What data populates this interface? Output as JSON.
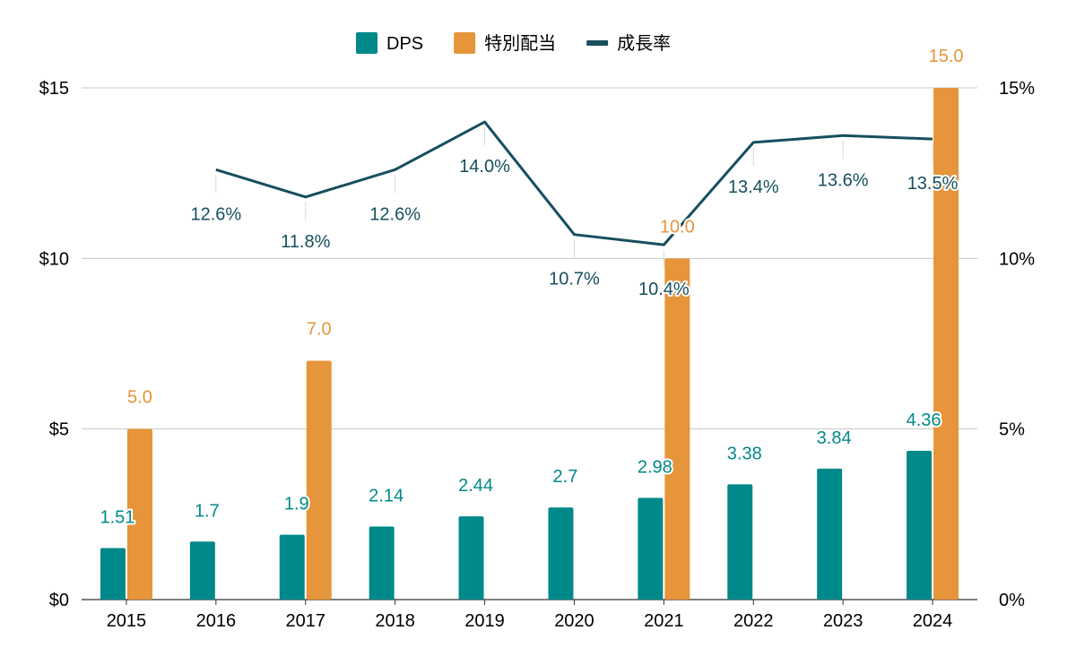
{
  "chart_data": {
    "type": "bar",
    "categories": [
      "2015",
      "2016",
      "2017",
      "2018",
      "2019",
      "2020",
      "2021",
      "2022",
      "2023",
      "2024"
    ],
    "series": [
      {
        "name": "DPS",
        "kind": "bar",
        "axis": "left",
        "color": "#00898A",
        "values": [
          1.51,
          1.7,
          1.9,
          2.14,
          2.44,
          2.7,
          2.98,
          3.38,
          3.84,
          4.36
        ],
        "labels": [
          "1.51",
          "1.7",
          "1.9",
          "2.14",
          "2.44",
          "2.7",
          "2.98",
          "3.38",
          "3.84",
          "4.36"
        ]
      },
      {
        "name": "特別配当",
        "kind": "bar",
        "axis": "left",
        "color": "#E6953A",
        "values": [
          5.0,
          null,
          7.0,
          null,
          null,
          null,
          10.0,
          null,
          null,
          15.0
        ],
        "labels": [
          "5.0",
          "",
          "7.0",
          "",
          "",
          "",
          "10.0",
          "",
          "",
          "15.0"
        ]
      },
      {
        "name": "成長率",
        "kind": "line",
        "axis": "right",
        "color": "#174F5E",
        "values": [
          null,
          12.6,
          11.8,
          12.6,
          14.0,
          10.7,
          10.4,
          13.4,
          13.6,
          13.5
        ],
        "labels": [
          "",
          "12.6%",
          "11.8%",
          "12.6%",
          "14.0%",
          "10.7%",
          "10.4%",
          "13.4%",
          "13.6%",
          "13.5%"
        ]
      }
    ],
    "y_left": {
      "ylim": [
        0,
        15
      ],
      "ticks": [
        0,
        5,
        10,
        15
      ],
      "tick_labels": [
        "$0",
        "$5",
        "$10",
        "$15"
      ]
    },
    "y_right": {
      "ylim": [
        0,
        15
      ],
      "ticks": [
        0,
        5,
        10,
        15
      ],
      "tick_labels": [
        "0%",
        "5%",
        "10%",
        "15%"
      ]
    },
    "grid": true,
    "legend_position": "top-center",
    "title": "",
    "xlabel": "",
    "ylabel": ""
  }
}
